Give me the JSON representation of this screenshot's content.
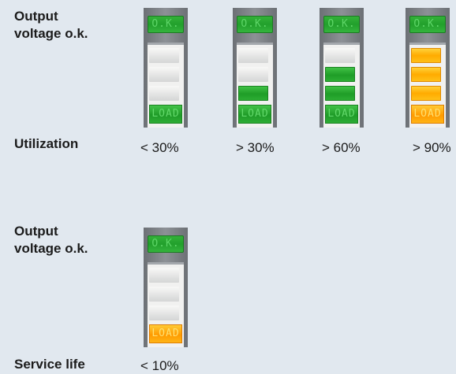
{
  "section1": {
    "label": "Output\nvoltage o.k.",
    "row_label": "Utilization",
    "modules": [
      {
        "caption": "< 30%",
        "ok_text": "O.K.",
        "load_text": "LOAD",
        "segments": [
          "off",
          "off",
          "off"
        ],
        "load_state": "green"
      },
      {
        "caption": "> 30%",
        "ok_text": "O.K.",
        "load_text": "LOAD",
        "segments": [
          "off",
          "off",
          "green"
        ],
        "load_state": "green"
      },
      {
        "caption": "> 60%",
        "ok_text": "O.K.",
        "load_text": "LOAD",
        "segments": [
          "off",
          "green",
          "green"
        ],
        "load_state": "green"
      },
      {
        "caption": "> 90%",
        "ok_text": "O.K.",
        "load_text": "LOAD",
        "segments": [
          "orange",
          "orange",
          "orange"
        ],
        "load_state": "orange"
      }
    ]
  },
  "section2": {
    "label": "Output\nvoltage o.k.",
    "row_label": "Service life",
    "modules": [
      {
        "caption": "< 10%",
        "ok_text": "O.K.",
        "load_text": "LOAD",
        "segments": [
          "off",
          "off",
          "off"
        ],
        "load_state": "orange"
      }
    ]
  },
  "colors": {
    "background": "#e1e8ef",
    "led_green": "#22a02c",
    "led_orange": "#ffab00",
    "segment_off": "#e6e6e6"
  }
}
